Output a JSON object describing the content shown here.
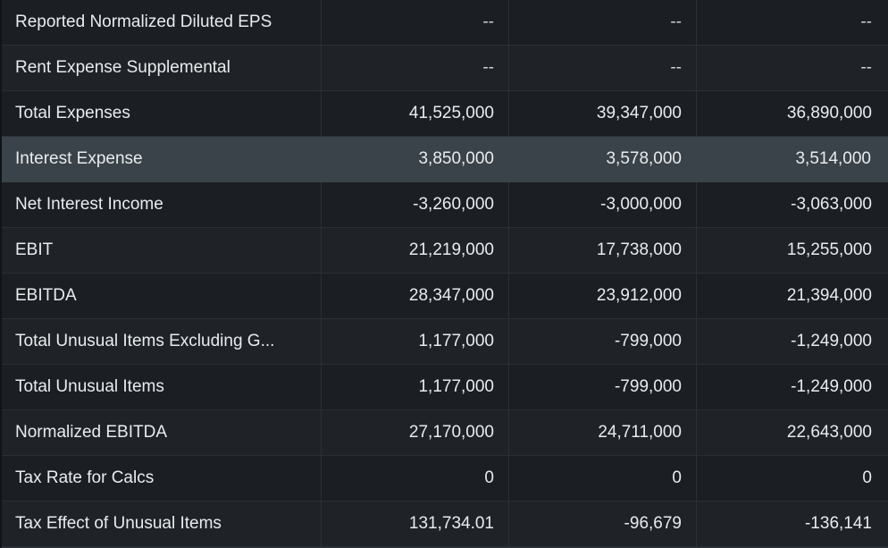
{
  "rows": [
    {
      "label": "Reported Normalized Diluted EPS",
      "values": [
        "--",
        "--",
        "--"
      ],
      "highlight": false
    },
    {
      "label": "Rent Expense Supplemental",
      "values": [
        "--",
        "--",
        "--"
      ],
      "highlight": false
    },
    {
      "label": "Total Expenses",
      "values": [
        "41,525,000",
        "39,347,000",
        "36,890,000"
      ],
      "highlight": false
    },
    {
      "label": "Interest Expense",
      "values": [
        "3,850,000",
        "3,578,000",
        "3,514,000"
      ],
      "highlight": true
    },
    {
      "label": "Net Interest Income",
      "values": [
        "-3,260,000",
        "-3,000,000",
        "-3,063,000"
      ],
      "highlight": false
    },
    {
      "label": "EBIT",
      "values": [
        "21,219,000",
        "17,738,000",
        "15,255,000"
      ],
      "highlight": false
    },
    {
      "label": "EBITDA",
      "values": [
        "28,347,000",
        "23,912,000",
        "21,394,000"
      ],
      "highlight": false
    },
    {
      "label": "Total Unusual Items Excluding G...",
      "values": [
        "1,177,000",
        "-799,000",
        "-1,249,000"
      ],
      "highlight": false
    },
    {
      "label": "Total Unusual Items",
      "values": [
        "1,177,000",
        "-799,000",
        "-1,249,000"
      ],
      "highlight": false
    },
    {
      "label": "Normalized EBITDA",
      "values": [
        "27,170,000",
        "24,711,000",
        "22,643,000"
      ],
      "highlight": false
    },
    {
      "label": "Tax Rate for Calcs",
      "values": [
        "0",
        "0",
        "0"
      ],
      "highlight": false
    },
    {
      "label": "Tax Effect of Unusual Items",
      "values": [
        "131,734.01",
        "-96,679",
        "-136,141"
      ],
      "highlight": false
    }
  ]
}
